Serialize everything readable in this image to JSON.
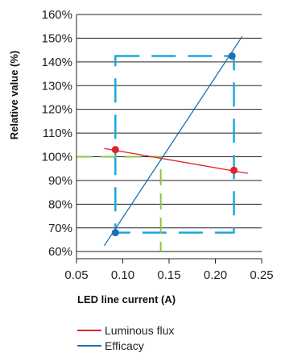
{
  "chart_data": {
    "type": "line",
    "title": "",
    "xlabel": "LED line current (A)",
    "ylabel": "Relative value (%)",
    "xlim": [
      0.05,
      0.25
    ],
    "ylim": [
      57,
      160
    ],
    "x_ticks": [
      "0.05",
      "0.10",
      "0.15",
      "0.20",
      "0.25"
    ],
    "x_tick_values": [
      0.05,
      0.1,
      0.15,
      0.2,
      0.25
    ],
    "y_ticks": [
      "60%",
      "70%",
      "80%",
      "90%",
      "100%",
      "110%",
      "120%",
      "130%",
      "140%",
      "150%",
      "160%"
    ],
    "y_tick_values": [
      60,
      70,
      80,
      90,
      100,
      110,
      120,
      130,
      140,
      150,
      160
    ],
    "grid": "horizontal",
    "legend_position": "bottom",
    "series": [
      {
        "name": "Luminous flux",
        "color": "#e0202a",
        "line": [
          [
            0.08,
            103.5
          ],
          [
            0.235,
            93
          ]
        ],
        "markers": [
          [
            0.092,
            103
          ],
          [
            0.22,
            94.3
          ]
        ]
      },
      {
        "name": "Efficacy",
        "color": "#1e6fb0",
        "line": [
          [
            0.08,
            62.5
          ],
          [
            0.229,
            150.8
          ]
        ],
        "markers": [
          [
            0.092,
            68
          ],
          [
            0.218,
            142.5
          ]
        ]
      }
    ],
    "annotations": [
      {
        "kind": "dashed-box",
        "color": "#1ea7df",
        "x": [
          0.092,
          0.22
        ],
        "y": [
          68,
          142.5
        ]
      },
      {
        "kind": "dashed-guide",
        "color": "#8cc63f",
        "path": [
          [
            0.05,
            100
          ],
          [
            0.141,
            100
          ],
          [
            0.141,
            60
          ]
        ]
      }
    ]
  }
}
